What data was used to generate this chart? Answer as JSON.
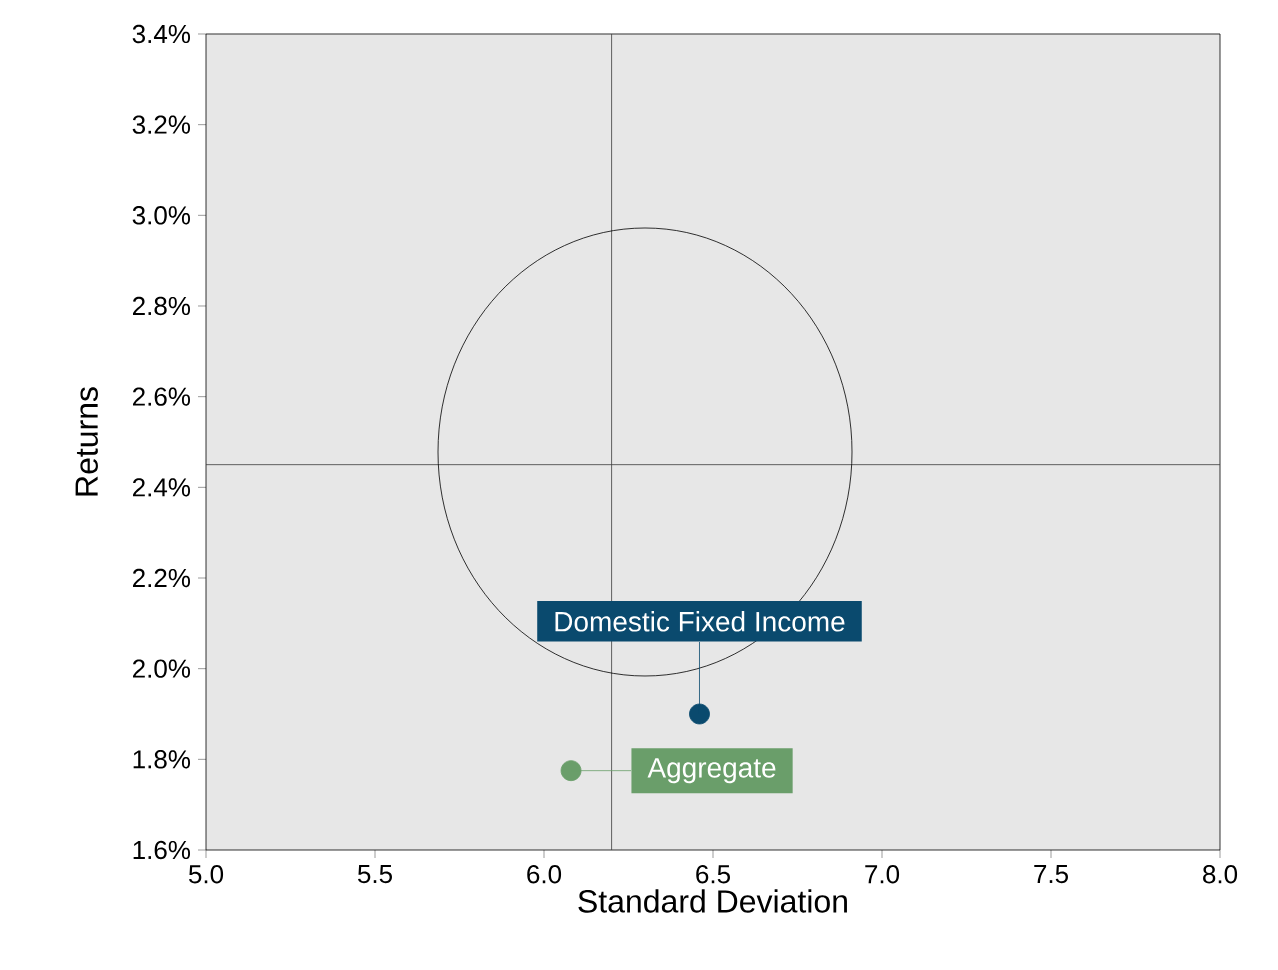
{
  "chart_data": {
    "type": "scatter",
    "xlabel": "Standard Deviation",
    "ylabel": "Returns",
    "xlim": [
      5.0,
      8.0
    ],
    "xticks": [
      {
        "value": 5.0,
        "label": "5.0"
      },
      {
        "value": 5.5,
        "label": "5.5"
      },
      {
        "value": 6.0,
        "label": "6.0"
      },
      {
        "value": 6.5,
        "label": "6.5"
      },
      {
        "value": 7.0,
        "label": "7.0"
      },
      {
        "value": 7.5,
        "label": "7.5"
      },
      {
        "value": 8.0,
        "label": "8.0"
      }
    ],
    "ylim": [
      1.6,
      3.4
    ],
    "yticks": [
      {
        "value": 1.6,
        "label": "1.6%"
      },
      {
        "value": 1.8,
        "label": "1.8%"
      },
      {
        "value": 2.0,
        "label": "2.0%"
      },
      {
        "value": 2.2,
        "label": "2.2%"
      },
      {
        "value": 2.4,
        "label": "2.4%"
      },
      {
        "value": 2.6,
        "label": "2.6%"
      },
      {
        "value": 2.8,
        "label": "2.8%"
      },
      {
        "value": 3.0,
        "label": "3.0%"
      },
      {
        "value": 3.2,
        "label": "3.2%"
      },
      {
        "value": 3.4,
        "label": "3.4%"
      }
    ],
    "grid": false,
    "ref_lines": [
      {
        "axis": "x",
        "value": 6.2,
        "color": "#3c3c3c"
      },
      {
        "axis": "y",
        "value": 2.45,
        "color": "#3c3c3c"
      }
    ],
    "series": [
      {
        "name": "Domestic Fixed Income",
        "color": "#0a4a6e",
        "x": [
          6.46
        ],
        "values": [
          1.9
        ]
      },
      {
        "name": "Aggregate",
        "color": "#6a9e6a",
        "x": [
          6.08
        ],
        "values": [
          1.775
        ]
      }
    ]
  }
}
